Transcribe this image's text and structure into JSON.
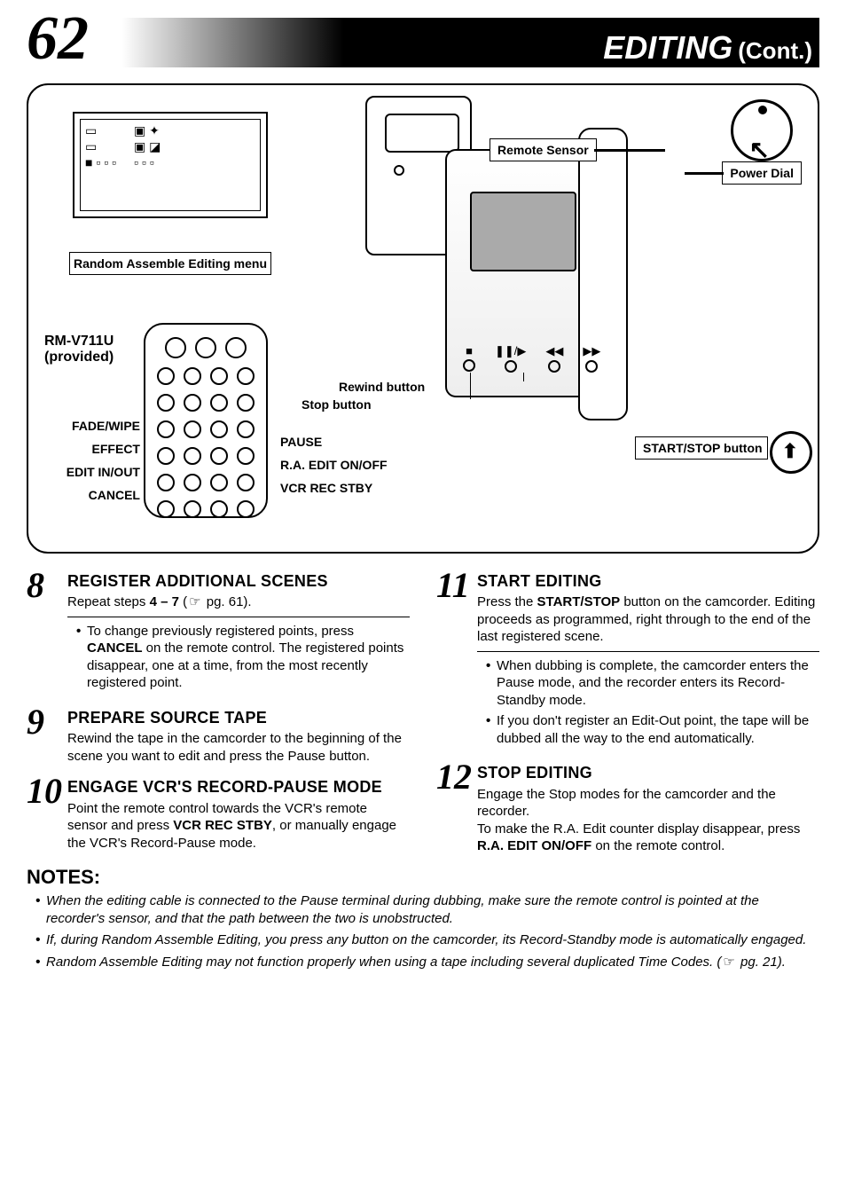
{
  "header": {
    "page_number": "62",
    "title": "EDITING",
    "cont": "(Cont.)"
  },
  "diagram": {
    "menu_label": "Random Assemble Editing menu",
    "remote_name": "RM-V711U",
    "remote_sub": "(provided)",
    "remote_left": [
      "FADE/WIPE",
      "EFFECT",
      "EDIT IN/OUT",
      "CANCEL"
    ],
    "remote_right": [
      "PAUSE",
      "R.A. EDIT ON/OFF",
      "VCR REC STBY"
    ],
    "cam_buttons": [
      "■",
      "❚❚/▶",
      "◀◀",
      "▶▶"
    ],
    "rewind_label": "Rewind button",
    "stop_label": "Stop button",
    "sensor_label": "Remote Sensor",
    "power_label": "Power Dial",
    "startstop_label": "START/STOP button"
  },
  "steps": [
    {
      "num": "8",
      "title": "REGISTER ADDITIONAL SCENES",
      "body_pre": "Repeat steps ",
      "body_bold": "4 – 7",
      "body_post": " (",
      "body_ref": " pg. 61).",
      "sub": [
        "To change previously registered points, press <b>CANCEL</b> on the remote control. The registered points disappear, one at a time, from the most recently registered point."
      ]
    },
    {
      "num": "9",
      "title": "PREPARE SOURCE TAPE",
      "body": "Rewind the tape in the camcorder to the beginning of the scene you want to edit and press the Pause button."
    },
    {
      "num": "10",
      "title": "ENGAGE VCR'S RECORD-PAUSE MODE",
      "body": "Point the remote control towards the VCR's remote sensor and press <b>VCR REC STBY</b>, or manually engage the VCR's Record-Pause mode."
    },
    {
      "num": "11",
      "title": "START EDITING",
      "body": "Press the <b>START/STOP</b> button on the camcorder. Editing proceeds as programmed, right through to the end of the last registered scene.",
      "sub": [
        "When dubbing is complete, the camcorder enters the Pause mode, and the recorder enters its Record-Standby mode.",
        "If you don't register an Edit-Out point, the tape will be dubbed all the way to the end automatically."
      ]
    },
    {
      "num": "12",
      "title": "STOP EDITING",
      "body": "Engage the Stop modes for the camcorder and the recorder.<br>To make the R.A. Edit counter display disappear, press <b>R.A. EDIT ON/OFF</b> on the remote control."
    }
  ],
  "notes_title": "NOTES:",
  "notes": [
    "When the editing cable is connected to the Pause terminal during dubbing, make sure the remote control is pointed at the recorder's sensor, and that the path between the two is unobstructed.",
    "If, during Random Assemble Editing, you press any button on the camcorder, its Record-Standby mode is automatically engaged.",
    "Random Assemble Editing may not function properly when using a tape including several duplicated Time Codes. (<span class='ref-icon'></span> pg. 21)."
  ],
  "colors": {
    "text": "#000000",
    "bg": "#ffffff"
  }
}
